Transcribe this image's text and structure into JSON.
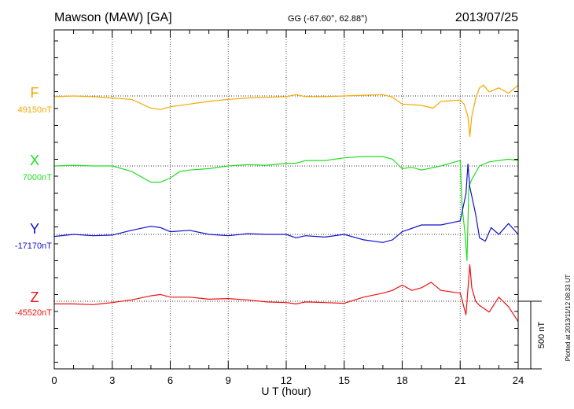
{
  "chart_data": {
    "type": "line",
    "title": "Mawson (MAW)  [GA]",
    "coords": "GG (-67.60°,  62.88°)",
    "date": "2013/07/25",
    "xlabel": "U T (hour)",
    "xlim": [
      0,
      24
    ],
    "x_ticks": [
      "0",
      "3",
      "6",
      "9",
      "12",
      "15",
      "18",
      "21",
      "24"
    ],
    "scale_label": "500 nT",
    "scale_nT": 500,
    "footer": "Plotted at 2013/11/12 08:33 UT",
    "grid": true,
    "series": [
      {
        "name": "F",
        "baseline_label": "49150nT",
        "color": "#f5a800",
        "x": [
          0,
          1,
          2,
          3,
          4,
          5,
          5.5,
          6,
          7,
          8,
          9,
          10,
          11,
          12,
          12.5,
          13,
          14,
          15,
          16,
          17,
          17.5,
          18,
          19,
          19.6,
          20,
          21,
          21.2,
          21.4,
          21.5,
          21.6,
          21.8,
          22,
          22.2,
          22.5,
          23,
          23.5,
          24
        ],
        "values": [
          -5,
          0,
          -5,
          -15,
          -25,
          -90,
          -100,
          -80,
          -60,
          -40,
          -25,
          -15,
          -10,
          -5,
          10,
          -5,
          -5,
          0,
          5,
          10,
          -10,
          -60,
          -70,
          -90,
          -40,
          -30,
          -60,
          -150,
          -300,
          -150,
          -20,
          60,
          80,
          30,
          60,
          20,
          80
        ]
      },
      {
        "name": "X",
        "baseline_label": "7000nT",
        "color": "#22dd22",
        "x": [
          0,
          1,
          2,
          3,
          3.5,
          4,
          4.5,
          5,
          5.5,
          6,
          6.5,
          7,
          8,
          9,
          10,
          11,
          12,
          12.5,
          13,
          14,
          15,
          16,
          17,
          17.5,
          18,
          18.5,
          19,
          20,
          21,
          21.1,
          21.25,
          21.35,
          21.45,
          21.6,
          22,
          22.5,
          23,
          23.5,
          24
        ],
        "values": [
          0,
          5,
          0,
          0,
          -20,
          -40,
          -80,
          -120,
          -120,
          -90,
          -40,
          -30,
          -20,
          0,
          10,
          5,
          20,
          20,
          40,
          40,
          60,
          70,
          70,
          50,
          -20,
          -10,
          -30,
          0,
          40,
          -300,
          -500,
          -700,
          -150,
          -100,
          0,
          30,
          40,
          50,
          40
        ]
      },
      {
        "name": "Y",
        "baseline_label": "-17170nT",
        "color": "#1010cc",
        "x": [
          0,
          1,
          2,
          3,
          4,
          5,
          5.5,
          6,
          7,
          8,
          9,
          10,
          11,
          12,
          12.5,
          13,
          14,
          15,
          16,
          17,
          17.5,
          18,
          19,
          20,
          21,
          21.3,
          21.4,
          21.5,
          21.8,
          22,
          22.3,
          22.6,
          23,
          23.5,
          24
        ],
        "values": [
          -15,
          0,
          -10,
          -5,
          30,
          60,
          50,
          20,
          30,
          0,
          -10,
          5,
          0,
          0,
          -25,
          -10,
          -20,
          0,
          -40,
          -60,
          -40,
          20,
          70,
          70,
          100,
          300,
          520,
          350,
          150,
          -25,
          -50,
          50,
          0,
          80,
          0
        ]
      },
      {
        "name": "Z",
        "baseline_label": "-45520nT",
        "color": "#ee1111",
        "x": [
          0,
          1,
          2,
          3,
          4,
          5,
          5.5,
          6,
          7,
          8,
          9,
          10,
          11,
          12,
          12.5,
          13,
          14,
          15,
          16,
          17,
          17.5,
          18,
          18.5,
          19,
          19.5,
          20,
          21,
          21.3,
          21.5,
          21.6,
          21.8,
          22,
          22.5,
          23,
          23.5,
          24
        ],
        "values": [
          -20,
          -20,
          -25,
          -10,
          10,
          40,
          50,
          30,
          30,
          15,
          20,
          10,
          -5,
          -10,
          -20,
          -5,
          -10,
          -15,
          30,
          60,
          80,
          120,
          80,
          100,
          140,
          80,
          60,
          -100,
          270,
          100,
          0,
          -30,
          -80,
          30,
          -40,
          -150
        ]
      }
    ]
  }
}
